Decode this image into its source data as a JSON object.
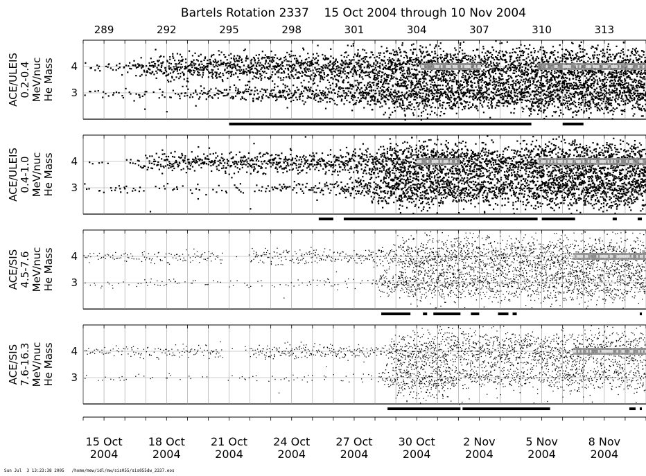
{
  "chart_data": {
    "type": "scatter",
    "title": "Bartels Rotation 2337    15 Oct 2004 through 10 Nov 2004",
    "top_axis_ticks": [
      "289",
      "292",
      "295",
      "298",
      "301",
      "304",
      "307",
      "310",
      "313"
    ],
    "bottom_axis_ticks": [
      {
        "date": "15 Oct",
        "year": "2004"
      },
      {
        "date": "18 Oct",
        "year": "2004"
      },
      {
        "date": "21 Oct",
        "year": "2004"
      },
      {
        "date": "24 Oct",
        "year": "2004"
      },
      {
        "date": "27 Oct",
        "year": "2004"
      },
      {
        "date": "30 Oct",
        "year": "2004"
      },
      {
        "date": "2 Nov",
        "year": "2004"
      },
      {
        "date": "5 Nov",
        "year": "2004"
      },
      {
        "date": "8 Nov",
        "year": "2004"
      }
    ],
    "x_range_doy": [
      288,
      315
    ],
    "ylim": [
      2,
      5
    ],
    "y_ticks": [
      "3",
      "4"
    ],
    "grid": true,
    "panels": [
      {
        "ylabel": [
          "ACE/ULEIS",
          "0.2-0.4",
          "MeV/nuc",
          "He Mass"
        ],
        "bands": [
          {
            "y": 4.0,
            "density": [
              [
                288,
                0.05
              ],
              [
                290,
                0.1
              ],
              [
                292,
                0.5
              ],
              [
                295,
                0.6
              ],
              [
                300,
                0.7
              ],
              [
                302,
                0.8
              ],
              [
                303.5,
                0.95
              ],
              [
                304.3,
                1.0
              ],
              [
                305.5,
                1.0
              ],
              [
                306.5,
                0.9
              ],
              [
                307,
                1.0
              ],
              [
                309,
                0.9
              ],
              [
                309.8,
                1.0
              ],
              [
                315,
                1.0
              ]
            ]
          },
          {
            "y": 3.0,
            "density": [
              [
                288,
                0.05
              ],
              [
                290,
                0.07
              ],
              [
                292,
                0.05
              ],
              [
                295,
                0.2
              ],
              [
                300,
                0.35
              ],
              [
                302,
                0.7
              ],
              [
                303.5,
                0.95
              ],
              [
                307,
                0.8
              ],
              [
                309,
                0.7
              ],
              [
                309.8,
                1.0
              ],
              [
                315,
                1.0
              ]
            ]
          }
        ],
        "bright_segments": [
          [
            304.2,
            307.0
          ],
          [
            309.8,
            315.0
          ]
        ],
        "coverage_bars": [
          [
            295.0,
            309.5
          ],
          [
            311.0,
            312.0
          ]
        ]
      },
      {
        "ylabel": [
          "ACE/ULEIS",
          "0.4-1.0",
          "MeV/nuc",
          "He Mass"
        ],
        "bands": [
          {
            "y": 4.0,
            "density": [
              [
                288,
                0.02
              ],
              [
                290,
                0.05
              ],
              [
                292,
                0.3
              ],
              [
                295,
                0.35
              ],
              [
                300,
                0.4
              ],
              [
                302,
                0.6
              ],
              [
                303,
                0.95
              ],
              [
                304.3,
                1.0
              ],
              [
                307,
                0.9
              ],
              [
                309,
                0.8
              ],
              [
                309.8,
                1.0
              ],
              [
                315,
                1.0
              ]
            ]
          },
          {
            "y": 3.0,
            "density": [
              [
                288,
                0.03
              ],
              [
                290,
                0.05
              ],
              [
                295,
                0.03
              ],
              [
                300,
                0.15
              ],
              [
                302,
                0.5
              ],
              [
                303,
                0.9
              ],
              [
                307,
                0.7
              ],
              [
                309,
                0.6
              ],
              [
                309.8,
                0.9
              ],
              [
                315,
                0.9
              ]
            ]
          }
        ],
        "bright_segments": [
          [
            304.0,
            306.0
          ],
          [
            309.8,
            315.0
          ]
        ],
        "coverage_bars": [
          [
            299.3,
            300.0
          ],
          [
            300.5,
            309.8
          ],
          [
            310.0,
            311.6
          ],
          [
            313.4,
            313.6
          ],
          [
            314.6,
            314.8
          ]
        ]
      },
      {
        "ylabel": [
          "ACE/SIS",
          "4.5-7.6",
          "MeV/nuc",
          "He Mass"
        ],
        "bands": [
          {
            "y": 4.0,
            "density": [
              [
                288,
                0.1
              ],
              [
                294,
                0.15
              ],
              [
                298,
                0.25
              ],
              [
                301,
                0.2
              ],
              [
                302.2,
                0.3
              ],
              [
                303,
                0.5
              ],
              [
                303.3,
                1.0
              ],
              [
                306,
                1.0
              ],
              [
                309,
                1.0
              ],
              [
                312,
                1.0
              ],
              [
                315,
                1.0
              ]
            ]
          },
          {
            "y": 3.0,
            "density": [
              [
                288,
                0.05
              ],
              [
                302,
                0.05
              ],
              [
                302.3,
                0.8
              ],
              [
                303,
                0.4
              ],
              [
                303.3,
                0.9
              ],
              [
                306,
                0.8
              ],
              [
                309,
                0.7
              ],
              [
                312,
                0.9
              ],
              [
                315,
                0.9
              ]
            ]
          }
        ],
        "bright_segments": [
          [
            311.5,
            315.0
          ]
        ],
        "coverage_bars": [
          [
            302.3,
            303.7
          ],
          [
            304.3,
            304.5
          ],
          [
            304.8,
            306.1
          ],
          [
            306.6,
            307.0
          ],
          [
            307.9,
            308.4
          ],
          [
            308.6,
            308.8
          ],
          [
            314.7,
            314.8
          ]
        ]
      },
      {
        "ylabel": [
          "ACE/SIS",
          "7.6-16.3",
          "MeV/nuc",
          "He Mass"
        ],
        "bands": [
          {
            "y": 4.0,
            "density": [
              [
                288,
                0.1
              ],
              [
                294,
                0.15
              ],
              [
                298,
                0.25
              ],
              [
                301,
                0.2
              ],
              [
                302.5,
                0.2
              ],
              [
                303.2,
                1.0
              ],
              [
                306,
                1.0
              ],
              [
                309,
                1.0
              ],
              [
                312,
                1.0
              ],
              [
                315,
                1.0
              ]
            ]
          },
          {
            "y": 3.0,
            "density": [
              [
                288,
                0.03
              ],
              [
                302,
                0.03
              ],
              [
                302.5,
                0.4
              ],
              [
                303.2,
                0.9
              ],
              [
                305.5,
                0.8
              ],
              [
                306,
                0.3
              ],
              [
                309,
                0.3
              ],
              [
                312,
                0.5
              ],
              [
                315,
                0.5
              ]
            ]
          }
        ],
        "bright_segments": [
          [
            311.5,
            315.0
          ]
        ],
        "coverage_bars": [
          [
            302.6,
            306.1
          ],
          [
            306.2,
            310.4
          ],
          [
            314.2,
            314.5
          ],
          [
            314.7,
            314.8
          ]
        ]
      }
    ]
  },
  "footer": "Sun Jul  3 13:23:38 2005   /home/mew/idl/mw/sis055/sis055dw_2337.eos"
}
